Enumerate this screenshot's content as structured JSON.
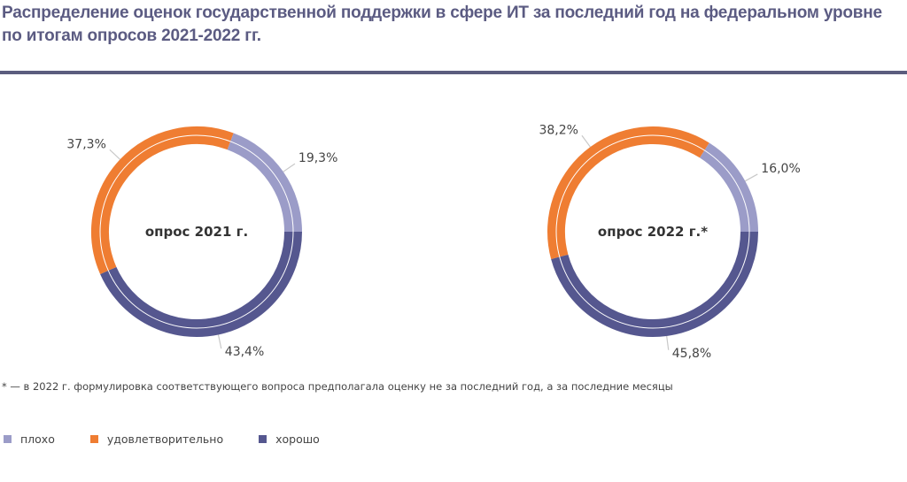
{
  "title": "Распределение оценок государственной поддержки в сфере ИТ за последний год на федеральном уровне по итогам опросов 2021-2022 гг.",
  "footnote": "* — в 2022 г. формулировка соответствующего вопроса предполагала оценку не за последний год, а за последние месяцы",
  "legend": [
    {
      "label": "плохо",
      "color": "#9b9cc8"
    },
    {
      "label": "удовлетворительно",
      "color": "#ef7d32"
    },
    {
      "label": "хорошо",
      "color": "#55578f"
    }
  ],
  "chart_data": [
    {
      "type": "pie",
      "donut": true,
      "center_label": "опрос 2021 г.",
      "categories": [
        "хорошо",
        "удовлетворительно",
        "плохо"
      ],
      "values": [
        43.4,
        37.3,
        19.3
      ],
      "labels": [
        "43,4%",
        "37,3%",
        "19,3%"
      ],
      "colors": [
        "#55578f",
        "#ef7d32",
        "#9b9cc8"
      ],
      "start": "3 o'clock, clockwise"
    },
    {
      "type": "pie",
      "donut": true,
      "center_label": "опрос 2022 г.*",
      "categories": [
        "хорошо",
        "удовлетворительно",
        "плохо"
      ],
      "values": [
        45.8,
        38.2,
        16.0
      ],
      "labels": [
        "45,8%",
        "38,2%",
        "16,0%"
      ],
      "colors": [
        "#55578f",
        "#ef7d32",
        "#9b9cc8"
      ],
      "start": "3 o'clock, clockwise"
    }
  ]
}
